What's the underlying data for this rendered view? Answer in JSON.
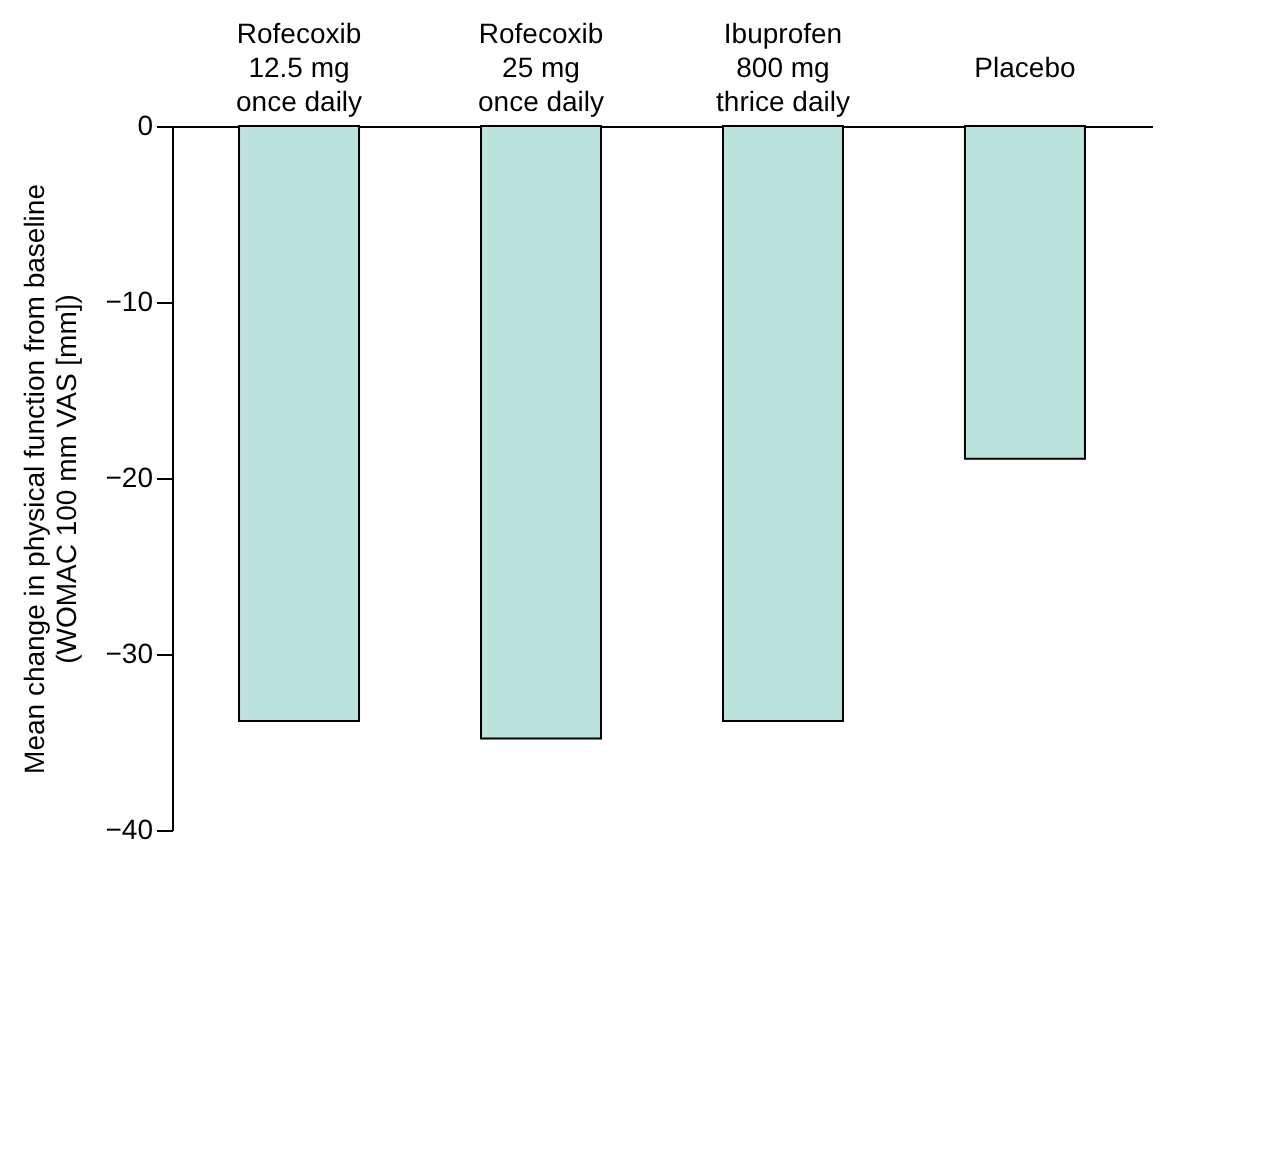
{
  "chart_data": {
    "type": "bar",
    "categories": [
      "Rofecoxib\n12.5 mg\nonce daily",
      "Rofecoxib\n25 mg\nonce daily",
      "Ibuprofen\n800 mg\nthrice daily",
      "Placebo"
    ],
    "values": [
      -33.8,
      -34.8,
      -33.8,
      -18.9
    ],
    "color": "#bde3dd",
    "ylabel": "Mean change in physical function from baseline\n(WOMAC 100 mm VAS [mm])",
    "ylim": [
      -40,
      0
    ],
    "yticks": [
      0,
      -10,
      -20,
      -30,
      -40
    ],
    "grid": false
  }
}
